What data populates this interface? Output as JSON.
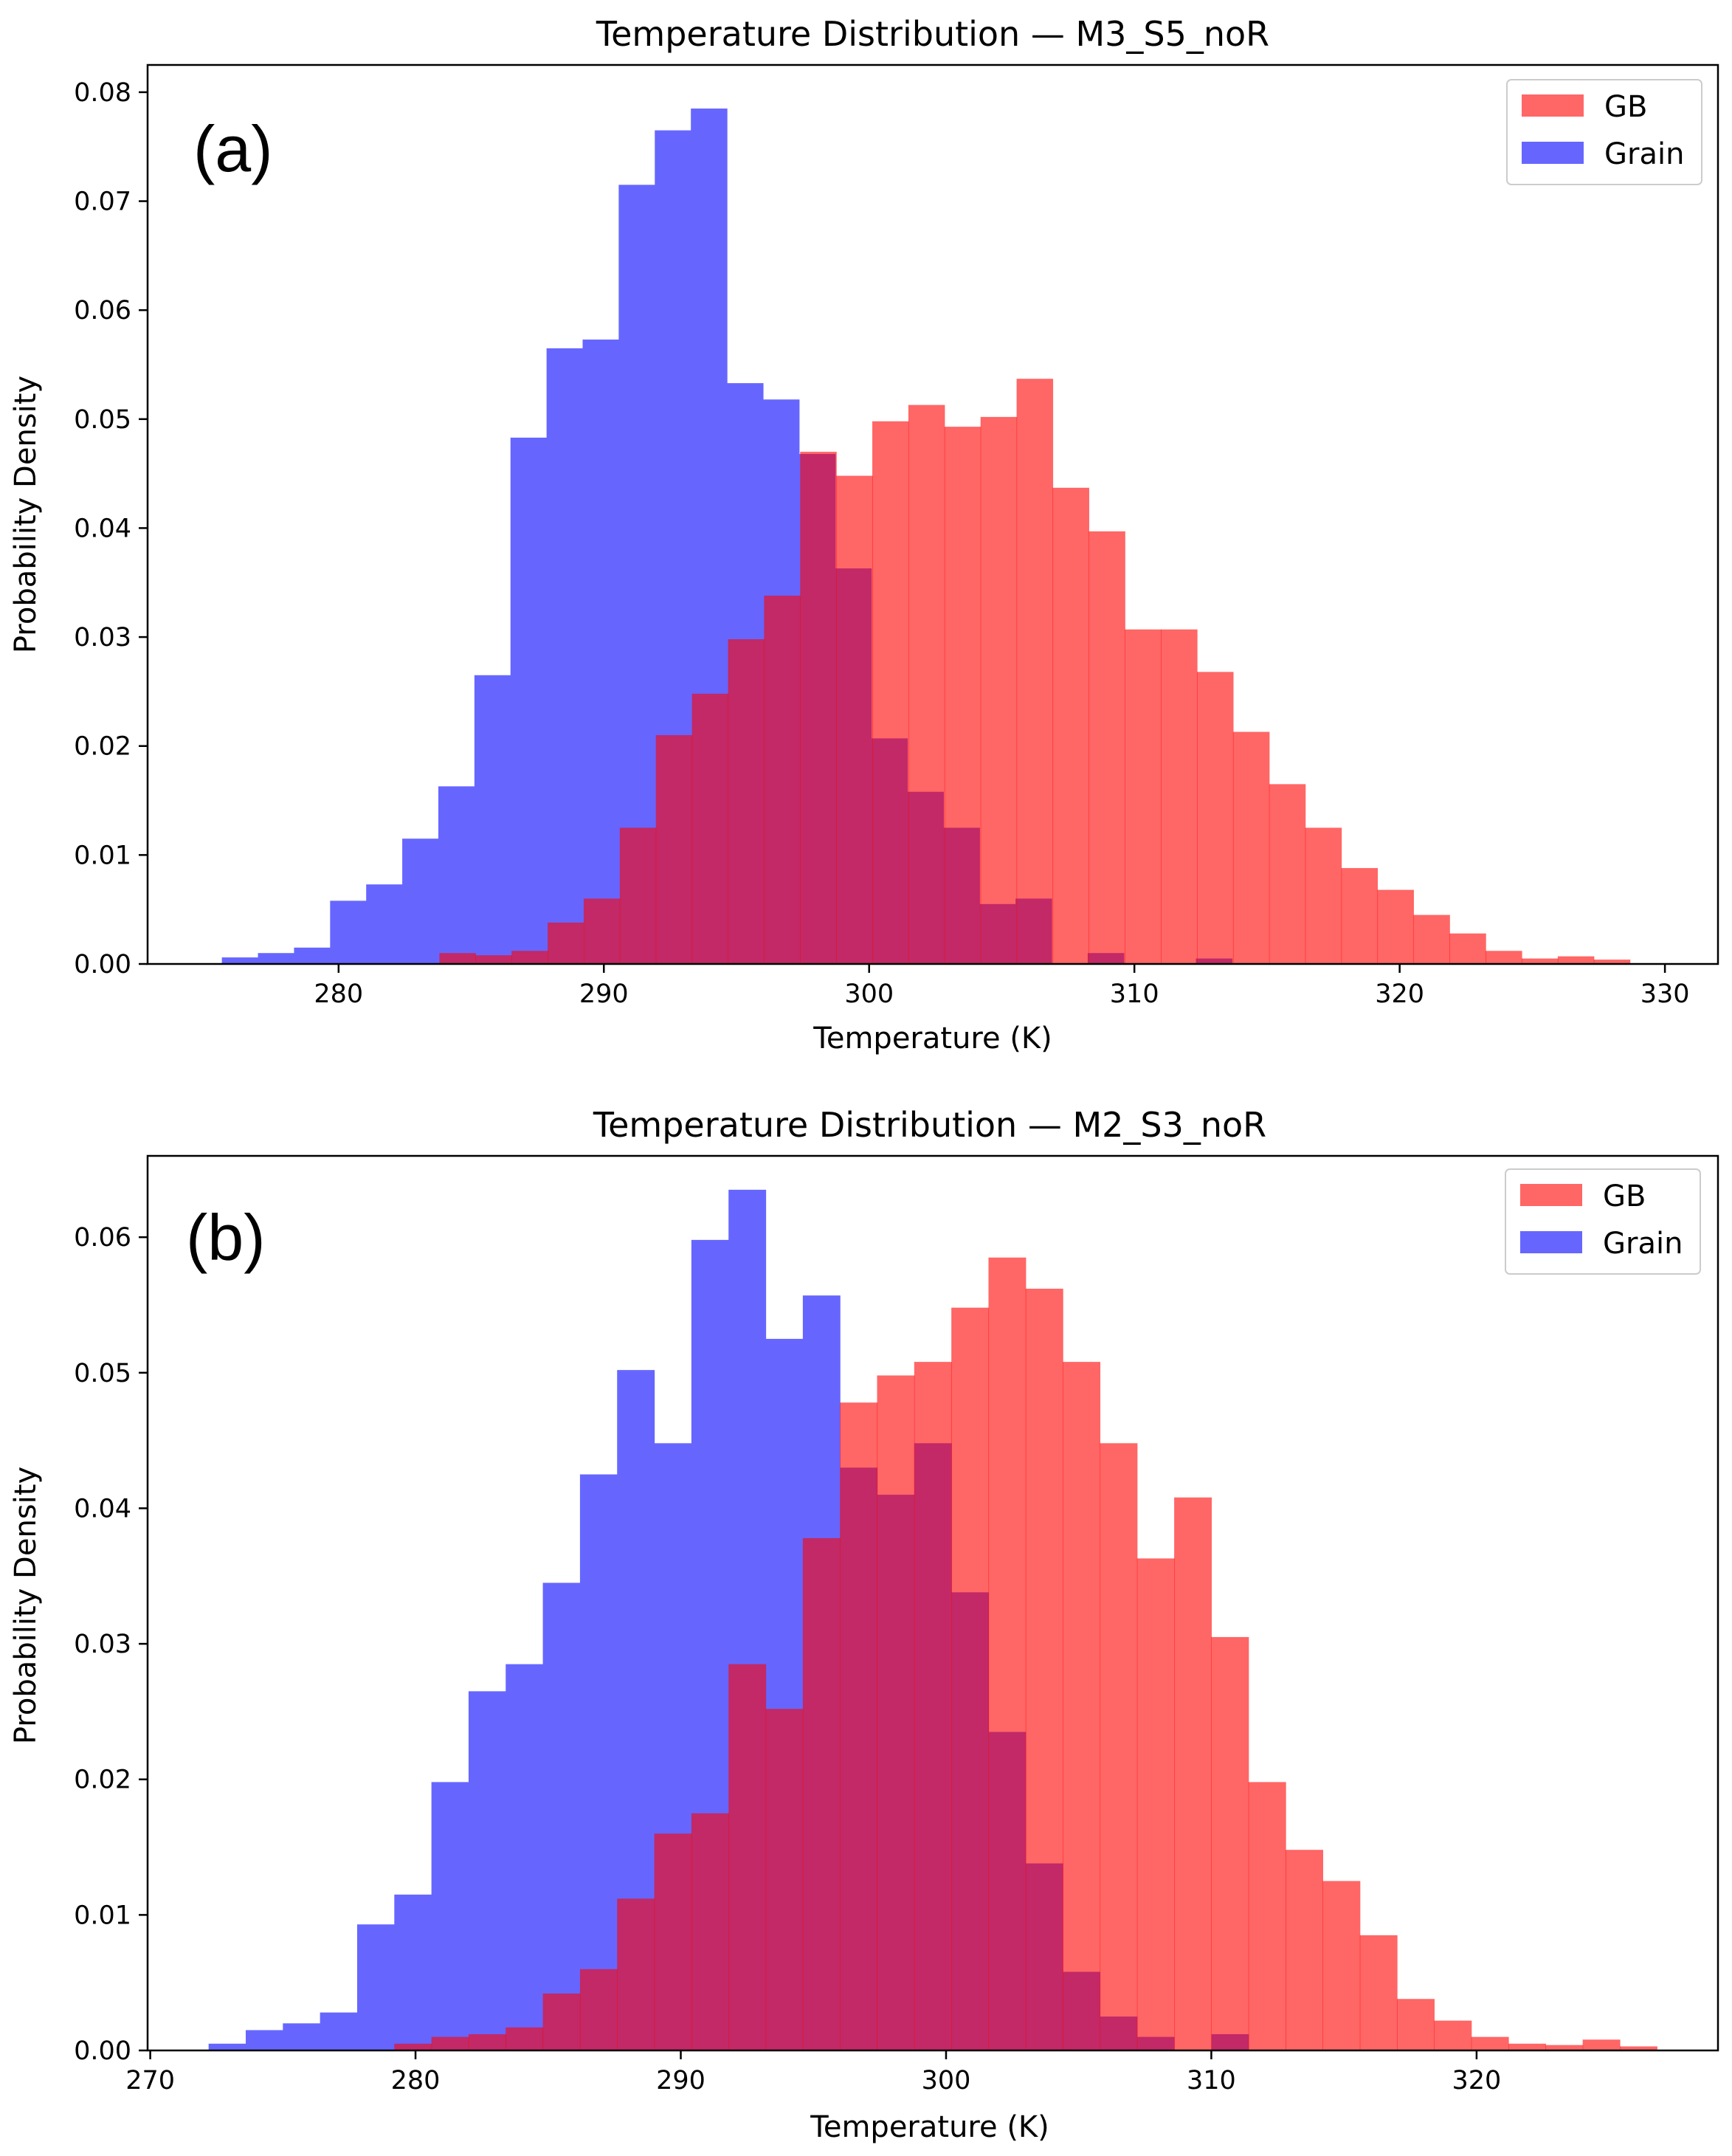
{
  "chart_data": [
    {
      "type": "histogram",
      "panel_label": "(a)",
      "title": "Temperature Distribution — M3_S5_noR",
      "xlabel": "Temperature (K)",
      "ylabel": "Probability Density",
      "xlim": [
        272.8,
        332.0
      ],
      "ylim": [
        0,
        0.0825
      ],
      "xticks": [
        280,
        290,
        300,
        310,
        320,
        330
      ],
      "yticks": [
        0.0,
        0.01,
        0.02,
        0.03,
        0.04,
        0.05,
        0.06,
        0.07,
        0.08
      ],
      "xtick_labels": [
        "280",
        "290",
        "300",
        "310",
        "320",
        "330"
      ],
      "ytick_labels": [
        "0.00",
        "0.01",
        "0.02",
        "0.03",
        "0.04",
        "0.05",
        "0.06",
        "0.07",
        "0.08"
      ],
      "legend_position": "top-right",
      "series": [
        {
          "name": "GB",
          "color": "#ff6666",
          "bin_start": 283.8,
          "bin_width": 1.36,
          "values": [
            0.001,
            0.0008,
            0.0012,
            0.0038,
            0.006,
            0.0125,
            0.021,
            0.0248,
            0.0298,
            0.0338,
            0.047,
            0.0448,
            0.0498,
            0.0513,
            0.0493,
            0.0502,
            0.0537,
            0.0437,
            0.0397,
            0.0307,
            0.0307,
            0.0268,
            0.0213,
            0.0165,
            0.0125,
            0.0088,
            0.0068,
            0.0045,
            0.0028,
            0.0012,
            0.0005,
            0.0007,
            0.0004
          ]
        },
        {
          "name": "Grain",
          "color": "#6666ff",
          "bin_start": 275.6,
          "bin_width": 1.36,
          "values": [
            0.0006,
            0.001,
            0.0015,
            0.0058,
            0.0073,
            0.0115,
            0.0163,
            0.0265,
            0.0483,
            0.0565,
            0.0573,
            0.0715,
            0.0765,
            0.0785,
            0.0533,
            0.0518,
            0.0468,
            0.0363,
            0.0207,
            0.0158,
            0.0125,
            0.0055,
            0.006,
            0.0,
            0.001,
            0.0,
            0.0,
            0.0005
          ]
        }
      ]
    },
    {
      "type": "histogram",
      "panel_label": "(b)",
      "title": "Temperature Distribution — M2_S3_noR",
      "xlabel": "Temperature (K)",
      "ylabel": "Probability Density",
      "xlim": [
        269.9,
        329.1
      ],
      "ylim": [
        0,
        0.066
      ],
      "xticks": [
        270,
        280,
        290,
        300,
        310,
        320
      ],
      "yticks": [
        0.0,
        0.01,
        0.02,
        0.03,
        0.04,
        0.05,
        0.06
      ],
      "xtick_labels": [
        "270",
        "280",
        "290",
        "300",
        "310",
        "320"
      ],
      "ytick_labels": [
        "0.00",
        "0.01",
        "0.02",
        "0.03",
        "0.04",
        "0.05",
        "0.06"
      ],
      "legend_position": "top-right",
      "series": [
        {
          "name": "GB",
          "color": "#ff6666",
          "bin_start": 279.2,
          "bin_width": 1.4,
          "values": [
            0.0005,
            0.001,
            0.0012,
            0.0017,
            0.0042,
            0.006,
            0.0112,
            0.016,
            0.0175,
            0.0285,
            0.0252,
            0.0378,
            0.0478,
            0.0498,
            0.0508,
            0.0548,
            0.0585,
            0.0562,
            0.0508,
            0.0448,
            0.0363,
            0.0408,
            0.0305,
            0.0198,
            0.0148,
            0.0125,
            0.0085,
            0.0038,
            0.0022,
            0.001,
            0.0005,
            0.0004,
            0.0008,
            0.0003
          ]
        },
        {
          "name": "Grain",
          "color": "#6666ff",
          "bin_start": 272.2,
          "bin_width": 1.4,
          "values": [
            0.0005,
            0.0015,
            0.002,
            0.0028,
            0.0093,
            0.0115,
            0.0198,
            0.0265,
            0.0285,
            0.0345,
            0.0425,
            0.0502,
            0.0448,
            0.0598,
            0.0635,
            0.0525,
            0.0557,
            0.043,
            0.041,
            0.0448,
            0.0338,
            0.0235,
            0.0138,
            0.0058,
            0.0025,
            0.001,
            0.0,
            0.0012
          ]
        }
      ]
    }
  ]
}
